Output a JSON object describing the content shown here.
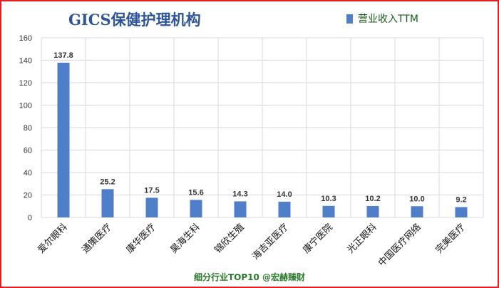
{
  "chart_data": {
    "type": "bar",
    "title": "GICS保健护理机构",
    "categories": [
      "爱尔眼科",
      "通策医疗",
      "康华医疗",
      "昊海生科",
      "锦欣生殖",
      "海吉亚医疗",
      "康宁医院",
      "光正眼科",
      "中国医疗网络",
      "完美医疗"
    ],
    "series": [
      {
        "name": "营业收入TTM",
        "values": [
          137.8,
          25.2,
          17.5,
          15.6,
          14.3,
          14.0,
          10.3,
          10.2,
          10.0,
          9.2
        ]
      }
    ],
    "data_labels": [
      "137.8",
      "25.2",
      "17.5",
      "15.6",
      "14.3",
      "14.0",
      "10.3",
      "10.2",
      "10.0",
      "9.2"
    ],
    "yticks": [
      "0",
      "20",
      "40",
      "60",
      "80",
      "100",
      "120",
      "140",
      "160"
    ],
    "ylim": [
      0,
      160
    ],
    "grid": true,
    "legend_position": "top-right",
    "bar_color": "#4f7fc9"
  },
  "footer": "细分行业TOP10 @宏赫臻财"
}
